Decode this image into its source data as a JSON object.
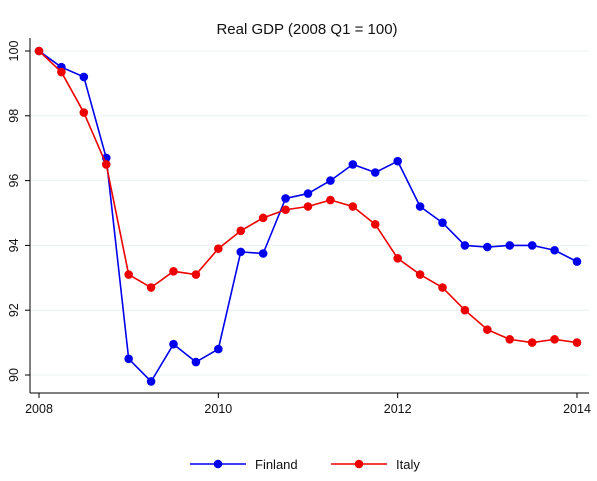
{
  "chart_data": {
    "type": "line",
    "title": "Real GDP (2008 Q1 = 100)",
    "xlabel": "",
    "ylabel": "",
    "x": [
      2008.0,
      2008.25,
      2008.5,
      2008.75,
      2009.0,
      2009.25,
      2009.5,
      2009.75,
      2010.0,
      2010.25,
      2010.5,
      2010.75,
      2011.0,
      2011.25,
      2011.5,
      2011.75,
      2012.0,
      2012.25,
      2012.5,
      2012.75,
      2013.0,
      2013.25,
      2013.5,
      2013.75,
      2014.0
    ],
    "xlim": [
      2008,
      2014
    ],
    "ylim": [
      89.7,
      100.3
    ],
    "xticks": [
      2008,
      2010,
      2012,
      2014
    ],
    "yticks": [
      90,
      92,
      94,
      96,
      98,
      100
    ],
    "xtick_labels": [
      "2008",
      "2010",
      "2012",
      "2014"
    ],
    "ytick_labels": [
      "90",
      "92",
      "94",
      "96",
      "98",
      "100"
    ],
    "series": [
      {
        "name": "Finland",
        "color": "#0000ee",
        "values": [
          100.0,
          99.5,
          99.2,
          96.7,
          90.5,
          89.8,
          90.95,
          90.4,
          90.8,
          93.8,
          93.75,
          95.45,
          95.6,
          96.0,
          96.5,
          96.25,
          96.6,
          95.2,
          94.7,
          94.0,
          93.95,
          94.0,
          94.0,
          93.85,
          93.5
        ]
      },
      {
        "name": "Italy",
        "color": "#ee0000",
        "values": [
          100.0,
          99.35,
          98.1,
          96.5,
          93.1,
          92.7,
          93.2,
          93.1,
          93.9,
          94.45,
          94.85,
          95.1,
          95.2,
          95.4,
          95.2,
          94.65,
          93.6,
          93.1,
          92.7,
          92.0,
          91.4,
          91.1,
          91.0,
          91.1,
          91.0
        ]
      }
    ],
    "grid": true,
    "legend_position": "bottom"
  }
}
